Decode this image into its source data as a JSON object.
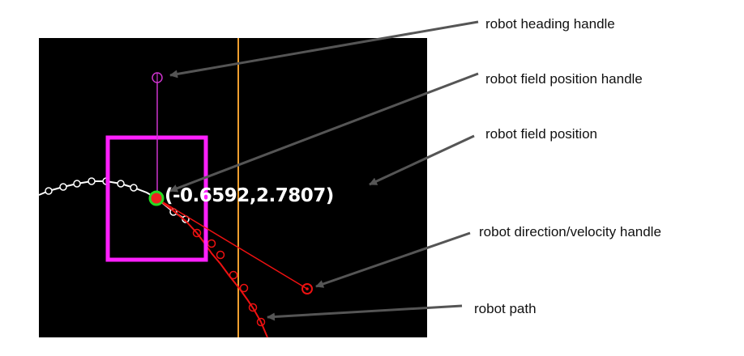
{
  "field": {
    "background_color": "#000000",
    "position_readout": "(-0.6592,2.7807)",
    "colors": {
      "robot_box": "#ff20ff",
      "heading_handle": "#cc33cc",
      "position_handle_ring": "#22dd22",
      "position_handle_center": "#ff2222",
      "path": "#ee1111",
      "prior_path": "#ffffff",
      "boundary_line": "#f0a030",
      "callout_arrow": "#555555"
    }
  },
  "callouts": [
    {
      "id": "heading-handle",
      "text": "robot heading handle"
    },
    {
      "id": "position-handle",
      "text": "robot field position handle"
    },
    {
      "id": "field-position",
      "text": "robot field position"
    },
    {
      "id": "direction-velocity-handle",
      "text": "robot direction/velocity handle"
    },
    {
      "id": "path",
      "text": "robot path"
    }
  ]
}
